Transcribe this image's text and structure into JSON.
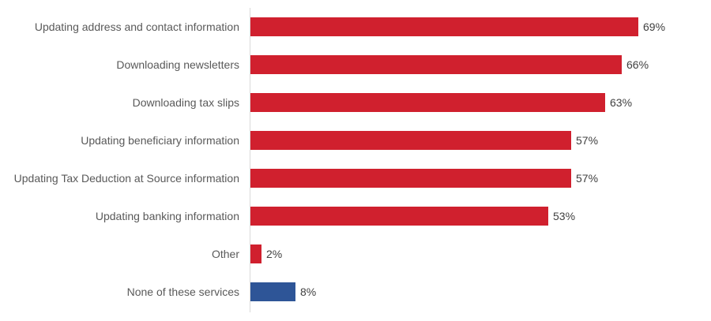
{
  "chart_data": {
    "type": "bar",
    "orientation": "horizontal",
    "title": "",
    "xlabel": "",
    "ylabel": "",
    "categories": [
      "Updating address and contact information",
      "Downloading newsletters",
      "Downloading tax slips",
      "Updating beneficiary information",
      "Updating Tax Deduction at Source information",
      "Updating banking information",
      "Other",
      "None of these services"
    ],
    "values": [
      69,
      66,
      63,
      57,
      57,
      53,
      2,
      8
    ],
    "value_labels": [
      "69%",
      "66%",
      "63%",
      "57%",
      "57%",
      "53%",
      "2%",
      "8%"
    ],
    "colors": [
      "#d0202e",
      "#d0202e",
      "#d0202e",
      "#d0202e",
      "#d0202e",
      "#d0202e",
      "#d0202e",
      "#2e5597"
    ],
    "unit": "%",
    "grid": false,
    "legend": null
  },
  "rows": [
    {
      "label": "Updating address and contact information",
      "value": 69,
      "value_label": "69%",
      "color": "#d0202e"
    },
    {
      "label": "Downloading newsletters",
      "value": 66,
      "value_label": "66%",
      "color": "#d0202e"
    },
    {
      "label": "Downloading tax slips",
      "value": 63,
      "value_label": "63%",
      "color": "#d0202e"
    },
    {
      "label": "Updating beneficiary information",
      "value": 57,
      "value_label": "57%",
      "color": "#d0202e"
    },
    {
      "label": "Updating Tax Deduction at Source information",
      "value": 57,
      "value_label": "57%",
      "color": "#d0202e"
    },
    {
      "label": "Updating banking information",
      "value": 53,
      "value_label": "53%",
      "color": "#d0202e"
    },
    {
      "label": "Other",
      "value": 2,
      "value_label": "2%",
      "color": "#d0202e"
    },
    {
      "label": "None of these services",
      "value": 8,
      "value_label": "8%",
      "color": "#2e5597"
    }
  ]
}
